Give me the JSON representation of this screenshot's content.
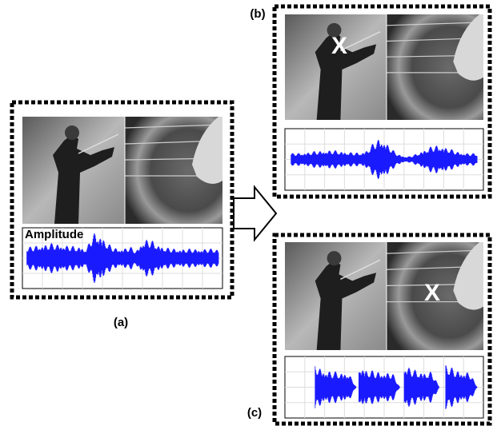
{
  "panels": [
    {
      "label": "(a)",
      "axis_label": "Amplitude"
    },
    {
      "label": "(b)",
      "marker": "X"
    },
    {
      "label": "(c)",
      "marker": "X"
    }
  ]
}
